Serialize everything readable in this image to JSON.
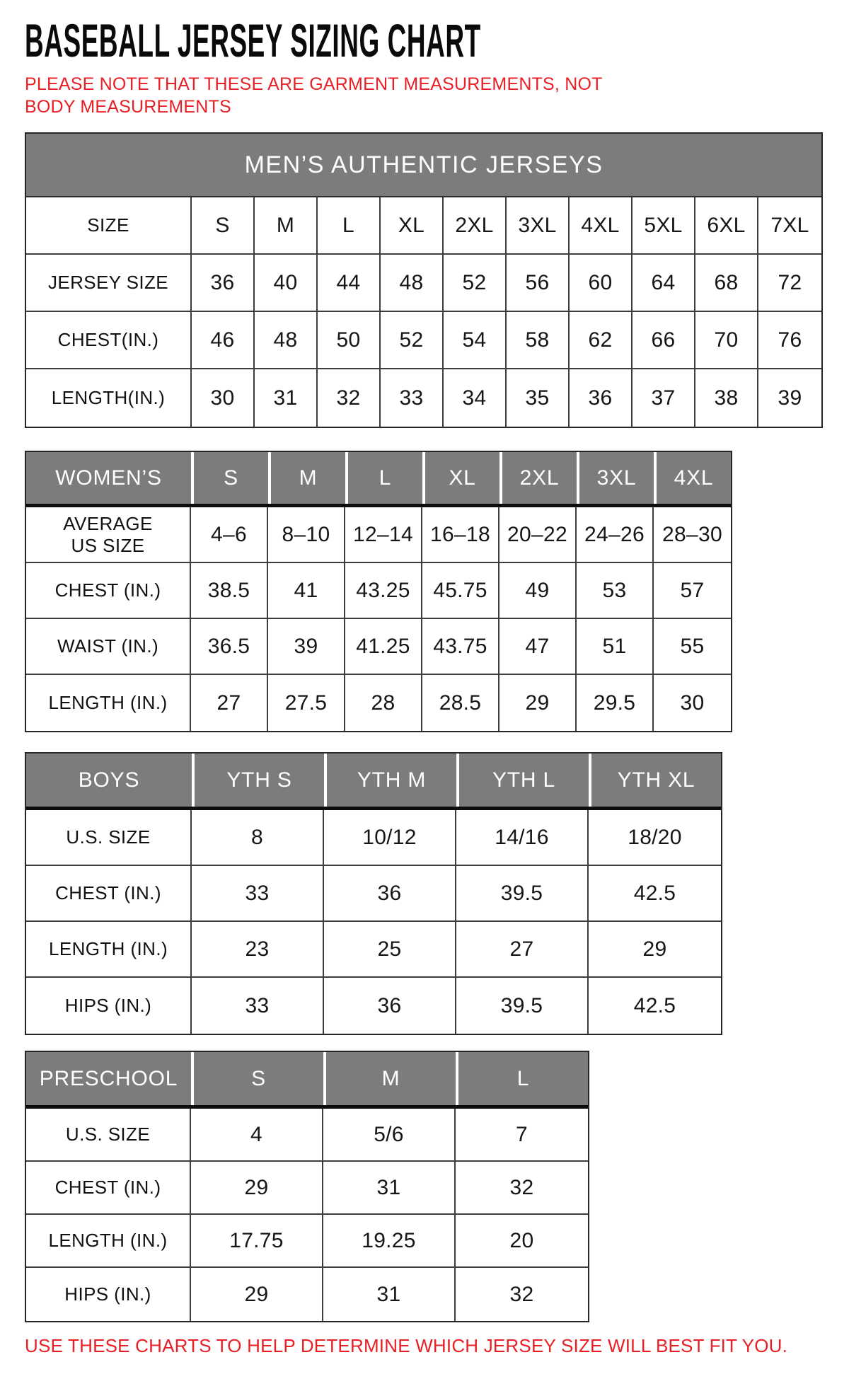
{
  "page": {
    "title": "BASEBALL JERSEY SIZING CHART",
    "note": "PLEASE NOTE THAT THESE ARE GARMENT MEASUREMENTS, NOT BODY MEASUREMENTS",
    "footer": "USE THESE CHARTS TO HELP DETERMINE WHICH JERSEY SIZE WILL BEST FIT YOU.",
    "colors": {
      "note_red": "#e82026",
      "header_gray": "#7c7c7c",
      "border_dark": "#3d3d3d",
      "title_black": "#0a0a0a"
    }
  },
  "tables": {
    "mens": {
      "banner": "MEN’S AUTHENTIC JERSEYS",
      "rows": [
        {
          "label": "SIZE",
          "values": [
            "S",
            "M",
            "L",
            "XL",
            "2XL",
            "3XL",
            "4XL",
            "5XL",
            "6XL",
            "7XL"
          ]
        },
        {
          "label": "JERSEY SIZE",
          "values": [
            "36",
            "40",
            "44",
            "48",
            "52",
            "56",
            "60",
            "64",
            "68",
            "72"
          ]
        },
        {
          "label": "CHEST(IN.)",
          "values": [
            "46",
            "48",
            "50",
            "52",
            "54",
            "58",
            "62",
            "66",
            "70",
            "76"
          ]
        },
        {
          "label": "LENGTH(IN.)",
          "values": [
            "30",
            "31",
            "32",
            "33",
            "34",
            "35",
            "36",
            "37",
            "38",
            "39"
          ]
        }
      ]
    },
    "womens": {
      "header": {
        "label": "WOMEN’S",
        "cols": [
          "S",
          "M",
          "L",
          "XL",
          "2XL",
          "3XL",
          "4XL"
        ]
      },
      "rows": [
        {
          "label": "AVERAGE\nUS SIZE",
          "values": [
            "4–6",
            "8–10",
            "12–14",
            "16–18",
            "20–22",
            "24–26",
            "28–30"
          ]
        },
        {
          "label": "CHEST (IN.)",
          "values": [
            "38.5",
            "41",
            "43.25",
            "45.75",
            "49",
            "53",
            "57"
          ]
        },
        {
          "label": "WAIST (IN.)",
          "values": [
            "36.5",
            "39",
            "41.25",
            "43.75",
            "47",
            "51",
            "55"
          ]
        },
        {
          "label": "LENGTH (IN.)",
          "values": [
            "27",
            "27.5",
            "28",
            "28.5",
            "29",
            "29.5",
            "30"
          ]
        }
      ]
    },
    "boys": {
      "header": {
        "label": "BOYS",
        "cols": [
          "YTH S",
          "YTH M",
          "YTH L",
          "YTH XL"
        ]
      },
      "rows": [
        {
          "label": "U.S. SIZE",
          "values": [
            "8",
            "10/12",
            "14/16",
            "18/20"
          ]
        },
        {
          "label": "CHEST (IN.)",
          "values": [
            "33",
            "36",
            "39.5",
            "42.5"
          ]
        },
        {
          "label": "LENGTH (IN.)",
          "values": [
            "23",
            "25",
            "27",
            "29"
          ]
        },
        {
          "label": "HIPS (IN.)",
          "values": [
            "33",
            "36",
            "39.5",
            "42.5"
          ]
        }
      ]
    },
    "preschool": {
      "header": {
        "label": "PRESCHOOL",
        "cols": [
          "S",
          "M",
          "L"
        ]
      },
      "rows": [
        {
          "label": "U.S. SIZE",
          "values": [
            "4",
            "5/6",
            "7"
          ]
        },
        {
          "label": "CHEST (IN.)",
          "values": [
            "29",
            "31",
            "32"
          ]
        },
        {
          "label": "LENGTH (IN.)",
          "values": [
            "17.75",
            "19.25",
            "20"
          ]
        },
        {
          "label": "HIPS (IN.)",
          "values": [
            "29",
            "31",
            "32"
          ]
        }
      ]
    }
  }
}
